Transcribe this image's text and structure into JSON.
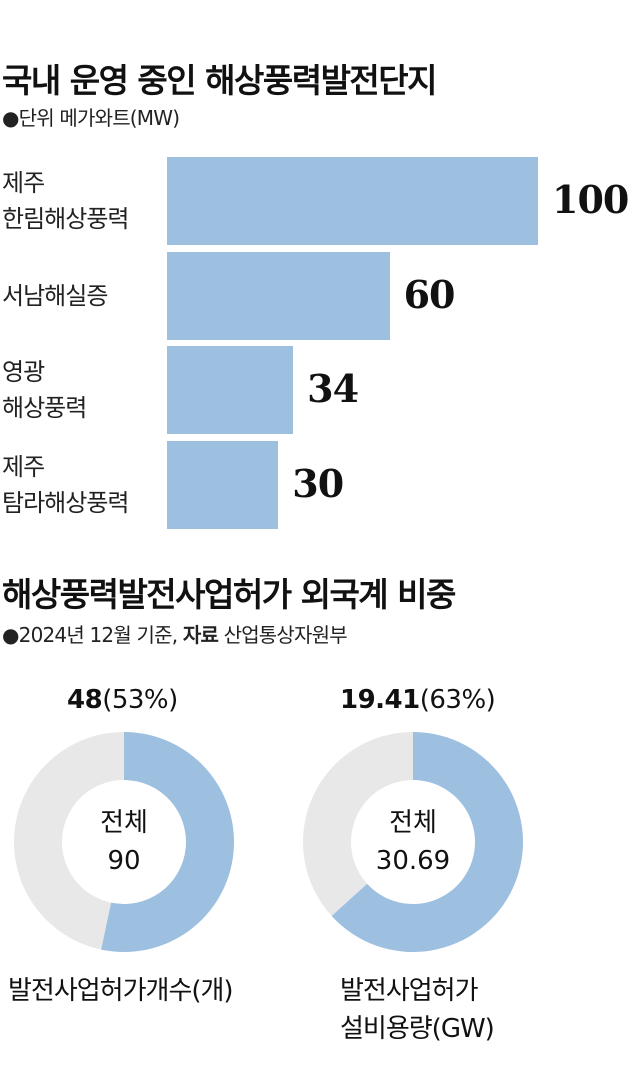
{
  "bar_section": {
    "title": "국내 운영 중인 해상풍력발전단지",
    "unit_note": "●단위 메가와트(MW)"
  },
  "donut_section": {
    "title": "해상풍력발전사업허가 외국계 비중",
    "note_prefix": "●2024년 12월 기준, ",
    "note_source_label": "자료",
    "note_source": " 산업통상자원부"
  },
  "chart_data": [
    {
      "type": "bar",
      "orientation": "horizontal",
      "title": "국내 운영 중인 해상풍력발전단지",
      "unit": "●단위 메가와트(MW)",
      "categories": [
        [
          "제주",
          "한림해상풍력"
        ],
        [
          "서남해실증"
        ],
        [
          "영광",
          "해상풍력"
        ],
        [
          "제주",
          "탐라해상풍력"
        ]
      ],
      "values": [
        100,
        60,
        34,
        30
      ],
      "value_labels": [
        "100",
        "60",
        "34",
        "30"
      ],
      "xlim": [
        0,
        100
      ],
      "grid": false,
      "bar_color": "#9dbfe0"
    },
    {
      "type": "pie",
      "donut": true,
      "value": 48,
      "total": 90,
      "pct_text": "(53%)",
      "value_text": "48",
      "center_label": "전체",
      "center_value": "90",
      "caption": [
        "발전사업허가개수(개)"
      ],
      "colors": {
        "part": "#9dbfe0",
        "rest": "#e8e8e8"
      }
    },
    {
      "type": "pie",
      "donut": true,
      "value": 19.41,
      "total": 30.69,
      "pct_text": "(63%)",
      "value_text": "19.41",
      "center_label": "전체",
      "center_value": "30.69",
      "caption": [
        "발전사업허가",
        "설비용량(GW)"
      ],
      "colors": {
        "part": "#9dbfe0",
        "rest": "#e8e8e8"
      }
    }
  ]
}
